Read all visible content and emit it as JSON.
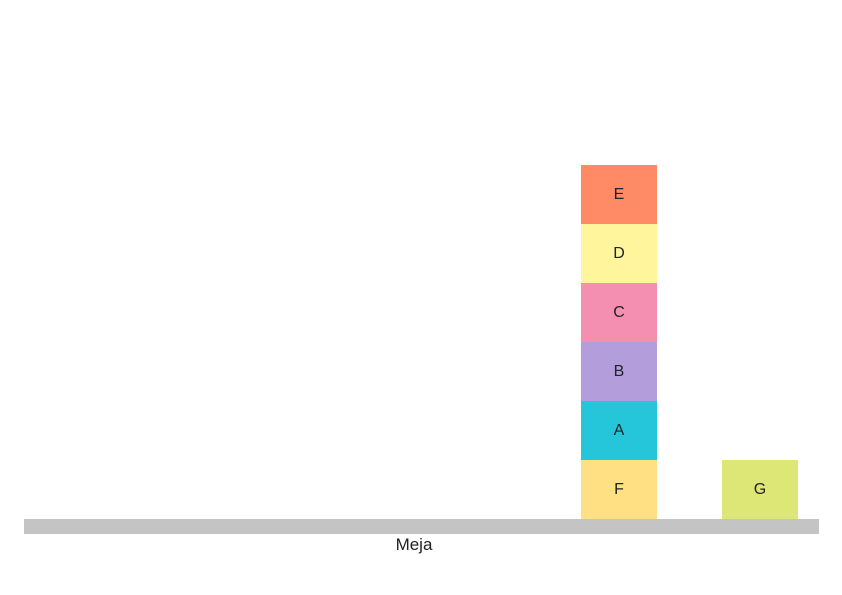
{
  "table": {
    "label": "Meja",
    "color": "#c4c4c4"
  },
  "blocks": [
    {
      "id": "F",
      "label": "F",
      "color": "#ffe082",
      "stack": "tower",
      "level": 0
    },
    {
      "id": "A",
      "label": "A",
      "color": "#26c6da",
      "stack": "tower",
      "level": 1
    },
    {
      "id": "B",
      "label": "B",
      "color": "#b39ddb",
      "stack": "tower",
      "level": 2
    },
    {
      "id": "C",
      "label": "C",
      "color": "#f48fb1",
      "stack": "tower",
      "level": 3
    },
    {
      "id": "D",
      "label": "D",
      "color": "#fff59d",
      "stack": "tower",
      "level": 4
    },
    {
      "id": "E",
      "label": "E",
      "color": "#ff8a65",
      "stack": "tower",
      "level": 5
    },
    {
      "id": "G",
      "label": "G",
      "color": "#dce775",
      "stack": "right",
      "level": 0
    }
  ]
}
